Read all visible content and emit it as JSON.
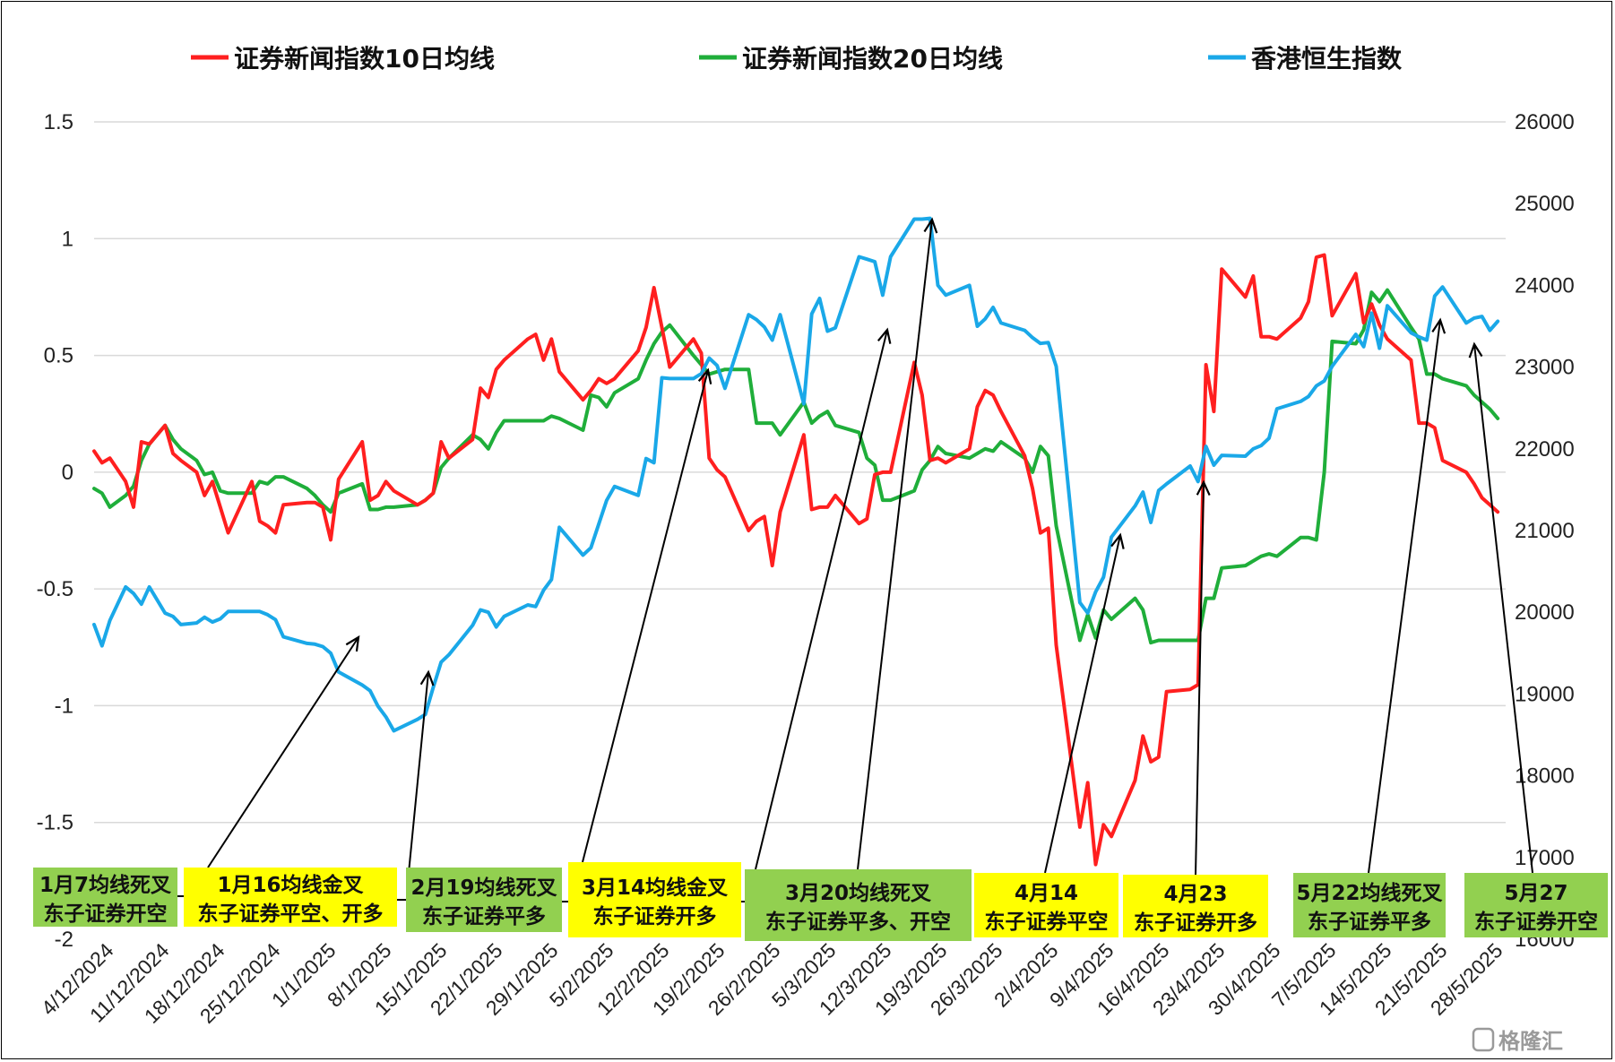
{
  "chart_data": {
    "type": "line",
    "x_ticks": [
      "4/12/2024",
      "11/12/2024",
      "18/12/2024",
      "25/12/2024",
      "1/1/2025",
      "8/1/2025",
      "15/1/2025",
      "22/1/2025",
      "29/1/2025",
      "5/2/2025",
      "12/2/2025",
      "19/2/2025",
      "26/2/2025",
      "5/3/2025",
      "12/3/2025",
      "19/3/2025",
      "26/3/2025",
      "2/4/2025",
      "9/4/2025",
      "16/4/2025",
      "23/4/2025",
      "30/4/2025",
      "7/5/2025",
      "14/5/2025",
      "21/5/2025",
      "28/5/2025"
    ],
    "y_left": {
      "min": -2,
      "max": 1.5,
      "ticks": [
        "1.5",
        "1",
        "0.5",
        "0",
        "-0.5",
        "-1",
        "-1.5",
        "-2"
      ]
    },
    "y_right": {
      "min": 16000,
      "max": 26000,
      "ticks": [
        "26000",
        "25000",
        "24000",
        "23000",
        "22000",
        "21000",
        "20000",
        "19000",
        "18000",
        "17000",
        "16000"
      ]
    },
    "grid": "horizontal",
    "legend_position": "top",
    "series": [
      {
        "name": "证券新闻指数10日均线",
        "color": "#ff1f1f",
        "axis": "left",
        "x": [
          0,
          1,
          2,
          4,
          5,
          6,
          7,
          9,
          10,
          11,
          13,
          14,
          15,
          16,
          17,
          20,
          21,
          22,
          23,
          24,
          27,
          28,
          29,
          30,
          31,
          34,
          35,
          36,
          37,
          38,
          41,
          42,
          43,
          44,
          45,
          48,
          49,
          50,
          51,
          52,
          55,
          56,
          57,
          58,
          59,
          62,
          63,
          64,
          65,
          66,
          69,
          70,
          71,
          72,
          73,
          76,
          77,
          78,
          79,
          80,
          83,
          84,
          85,
          86,
          87,
          90,
          91,
          92,
          93,
          94,
          97,
          98,
          99,
          100,
          101,
          104,
          105,
          106,
          107,
          108,
          111,
          112,
          113,
          114,
          115,
          118,
          119,
          120,
          121,
          122,
          125,
          126,
          127,
          128,
          129,
          132,
          133,
          134,
          135,
          136,
          139,
          140,
          141,
          142,
          143,
          146,
          147,
          148,
          149,
          150,
          153,
          154,
          155,
          156,
          157,
          160,
          161,
          162,
          163,
          164,
          167,
          168,
          169,
          170,
          171,
          174,
          175,
          176,
          177,
          178
        ],
        "values": [
          0.09,
          0.04,
          0.06,
          -0.04,
          -0.15,
          0.13,
          0.12,
          0.2,
          0.08,
          0.05,
          0.0,
          -0.1,
          -0.04,
          -0.15,
          -0.26,
          -0.04,
          -0.21,
          -0.23,
          -0.26,
          -0.14,
          -0.13,
          -0.13,
          -0.15,
          -0.29,
          -0.03,
          0.13,
          -0.12,
          -0.1,
          -0.04,
          -0.08,
          -0.14,
          -0.12,
          -0.09,
          0.13,
          0.06,
          0.14,
          0.36,
          0.32,
          0.44,
          0.48,
          0.57,
          0.59,
          0.48,
          0.57,
          0.43,
          0.31,
          0.35,
          0.4,
          0.38,
          0.4,
          0.52,
          0.62,
          0.79,
          0.62,
          0.45,
          0.57,
          0.51,
          0.06,
          0.01,
          -0.02,
          -0.25,
          -0.21,
          -0.19,
          -0.4,
          -0.17,
          0.16,
          -0.16,
          -0.15,
          -0.15,
          -0.1,
          -0.22,
          -0.2,
          -0.01,
          0.0,
          0.0,
          0.47,
          0.33,
          0.05,
          0.06,
          0.04,
          0.1,
          0.28,
          0.35,
          0.33,
          0.26,
          0.07,
          -0.07,
          -0.26,
          -0.24,
          -0.74,
          -1.52,
          -1.33,
          -1.68,
          -1.51,
          -1.56,
          -1.32,
          -1.13,
          -1.24,
          -1.22,
          -0.94,
          -0.93,
          -0.91,
          0.46,
          0.26,
          0.87,
          0.75,
          0.84,
          0.58,
          0.58,
          0.57,
          0.66,
          0.73,
          0.92,
          0.93,
          0.67,
          0.85,
          0.64,
          0.72,
          0.63,
          0.57,
          0.48,
          0.21,
          0.21,
          0.19,
          0.05,
          0.0,
          -0.05,
          -0.11,
          -0.14,
          -0.17
        ]
      },
      {
        "name": "证券新闻指数20日均线",
        "color": "#1fae3a",
        "axis": "left",
        "x": [
          0,
          1,
          2,
          4,
          5,
          6,
          7,
          9,
          10,
          11,
          13,
          14,
          15,
          16,
          17,
          20,
          21,
          22,
          23,
          24,
          27,
          28,
          29,
          30,
          31,
          34,
          35,
          36,
          37,
          38,
          41,
          42,
          43,
          44,
          45,
          48,
          49,
          50,
          51,
          52,
          55,
          56,
          57,
          58,
          59,
          62,
          63,
          64,
          65,
          66,
          69,
          70,
          71,
          72,
          73,
          76,
          77,
          78,
          79,
          80,
          83,
          84,
          85,
          86,
          87,
          90,
          91,
          92,
          93,
          94,
          97,
          98,
          99,
          100,
          101,
          104,
          105,
          106,
          107,
          108,
          111,
          112,
          113,
          114,
          115,
          118,
          119,
          120,
          121,
          122,
          125,
          126,
          127,
          128,
          129,
          132,
          133,
          134,
          135,
          136,
          139,
          140,
          141,
          142,
          143,
          146,
          147,
          148,
          149,
          150,
          153,
          154,
          155,
          156,
          157,
          160,
          161,
          162,
          163,
          164,
          167,
          168,
          169,
          170,
          171,
          174,
          175,
          176,
          177,
          178
        ],
        "values": [
          -0.07,
          -0.09,
          -0.15,
          -0.1,
          -0.06,
          0.05,
          0.12,
          0.2,
          0.14,
          0.1,
          0.05,
          -0.01,
          0.0,
          -0.08,
          -0.09,
          -0.09,
          -0.04,
          -0.05,
          -0.02,
          -0.02,
          -0.07,
          -0.1,
          -0.14,
          -0.17,
          -0.09,
          -0.05,
          -0.16,
          -0.16,
          -0.15,
          -0.15,
          -0.14,
          -0.12,
          -0.09,
          0.02,
          0.06,
          0.16,
          0.14,
          0.1,
          0.17,
          0.22,
          0.22,
          0.22,
          0.22,
          0.24,
          0.23,
          0.18,
          0.33,
          0.32,
          0.28,
          0.34,
          0.4,
          0.48,
          0.55,
          0.6,
          0.63,
          0.5,
          0.46,
          0.42,
          0.43,
          0.44,
          0.44,
          0.21,
          0.21,
          0.21,
          0.16,
          0.3,
          0.21,
          0.24,
          0.26,
          0.2,
          0.17,
          0.06,
          0.03,
          -0.12,
          -0.12,
          -0.08,
          0.01,
          0.05,
          0.11,
          0.08,
          0.06,
          0.08,
          0.1,
          0.09,
          0.13,
          0.06,
          0.0,
          0.11,
          0.07,
          -0.23,
          -0.72,
          -0.61,
          -0.71,
          -0.59,
          -0.63,
          -0.54,
          -0.59,
          -0.73,
          -0.72,
          -0.72,
          -0.72,
          -0.72,
          -0.54,
          -0.54,
          -0.41,
          -0.4,
          -0.38,
          -0.36,
          -0.35,
          -0.36,
          -0.28,
          -0.28,
          -0.29,
          0.0,
          0.56,
          0.55,
          0.61,
          0.77,
          0.73,
          0.78,
          0.62,
          0.57,
          0.42,
          0.42,
          0.4,
          0.37,
          0.33,
          0.3,
          0.27,
          0.23
        ]
      },
      {
        "name": "香港恒生指数",
        "color": "#1aa8e8",
        "axis": "right",
        "x": [
          0,
          1,
          2,
          4,
          5,
          6,
          7,
          9,
          10,
          11,
          13,
          14,
          15,
          16,
          17,
          20,
          21,
          22,
          23,
          24,
          27,
          28,
          29,
          30,
          31,
          34,
          35,
          36,
          37,
          38,
          41,
          42,
          43,
          44,
          45,
          48,
          49,
          50,
          51,
          52,
          55,
          56,
          57,
          58,
          59,
          62,
          63,
          64,
          65,
          66,
          69,
          70,
          71,
          72,
          73,
          76,
          77,
          78,
          79,
          80,
          83,
          84,
          85,
          86,
          87,
          90,
          91,
          92,
          93,
          94,
          97,
          98,
          99,
          100,
          101,
          104,
          105,
          106,
          107,
          108,
          111,
          112,
          113,
          114,
          115,
          118,
          119,
          120,
          121,
          122,
          125,
          126,
          127,
          128,
          129,
          132,
          133,
          134,
          135,
          136,
          139,
          140,
          141,
          142,
          143,
          146,
          147,
          148,
          149,
          150,
          153,
          154,
          155,
          156,
          157,
          160,
          161,
          162,
          163,
          164,
          167,
          168,
          169,
          170,
          171,
          174,
          175,
          176,
          177,
          178
        ],
        "values": [
          19850,
          19590,
          19900,
          20310,
          20230,
          20100,
          20310,
          19990,
          19950,
          19850,
          19870,
          19940,
          19880,
          19920,
          20010,
          20010,
          20010,
          19970,
          19910,
          19700,
          19620,
          19610,
          19580,
          19500,
          19270,
          19110,
          19040,
          18850,
          18720,
          18550,
          18690,
          18750,
          19080,
          19390,
          19480,
          19840,
          20030,
          20000,
          19820,
          19950,
          20090,
          20070,
          20270,
          20400,
          21040,
          20700,
          20790,
          21080,
          21370,
          21540,
          21430,
          21880,
          21830,
          22870,
          22860,
          22860,
          22920,
          23110,
          23020,
          22740,
          23640,
          23580,
          23490,
          23330,
          23640,
          22550,
          23650,
          23840,
          23440,
          23480,
          24350,
          24320,
          24290,
          23880,
          24350,
          24810,
          24810,
          24820,
          24000,
          23880,
          24000,
          23500,
          23590,
          23730,
          23540,
          23450,
          23360,
          23290,
          23300,
          23010,
          20120,
          19990,
          20250,
          20430,
          20920,
          21300,
          21470,
          21100,
          21490,
          21570,
          21790,
          21600,
          22030,
          21800,
          21920,
          21910,
          22000,
          22040,
          22130,
          22490,
          22580,
          22640,
          22770,
          22830,
          23010,
          23400,
          23250,
          23660,
          23230,
          23750,
          23420,
          23370,
          23330,
          23870,
          23980,
          23540,
          23600,
          23620,
          23450,
          23560
        ]
      }
    ],
    "annotations": [
      {
        "line1": "1月7均线死叉",
        "line2": "东子证券开空",
        "color": "#92d050"
      },
      {
        "line1": "1月16均线金叉",
        "line2": "东子证券平空、开多",
        "color": "#ffff00"
      },
      {
        "line1": "2月19均线死叉",
        "line2": "东子证券平多",
        "color": "#92d050"
      },
      {
        "line1": "3月14均线金叉",
        "line2": "东子证券开多",
        "color": "#ffff00"
      },
      {
        "line1": "3月20均线死叉",
        "line2": "东子证券平多、开空",
        "color": "#92d050"
      },
      {
        "line1": "4月14",
        "line2": "东子证券平空",
        "color": "#ffff00"
      },
      {
        "line1": "4月23",
        "line2": "东子证券开多",
        "color": "#ffff00"
      },
      {
        "line1": "5月22均线死叉",
        "line2": "东子证券平多",
        "color": "#92d050"
      },
      {
        "line1": "5月27",
        "line2": "东子证券开空",
        "color": "#92d050"
      }
    ],
    "watermark": "格隆汇"
  }
}
